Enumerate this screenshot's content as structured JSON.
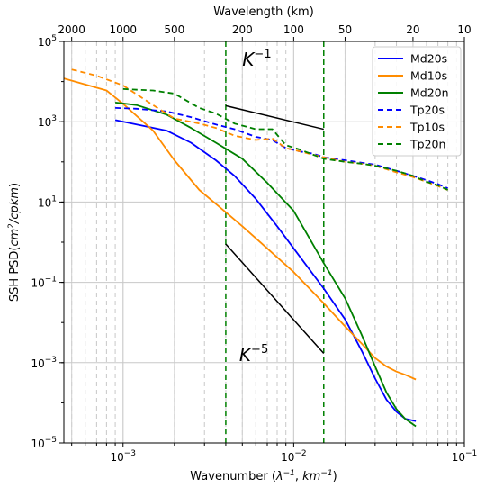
{
  "chart_data": {
    "type": "line",
    "xlabel_main": "Wavenumber (",
    "xlabel_math": "λ",
    "xlabel_sup": "−1",
    "xlabel_sep": ", ",
    "xlabel_unit": "km",
    "xlabel_end": ")",
    "ylabel_main": "SSH PSD(",
    "ylabel_unit": "cm",
    "ylabel_sup": "2",
    "ylabel_den": "/cpkm",
    "ylabel_end": ")",
    "top_xlabel": "Wavelength (km)",
    "x_scale": "log",
    "y_scale": "log",
    "xlim": [
      0.00045,
      0.1
    ],
    "ylim": [
      1e-05,
      100000
    ],
    "x_ticks": [
      {
        "value": 0.001,
        "base": "10",
        "exp": "−3"
      },
      {
        "value": 0.01,
        "base": "10",
        "exp": "−2"
      },
      {
        "value": 0.1,
        "base": "10",
        "exp": "−1"
      }
    ],
    "y_ticks": [
      {
        "value": 1e-05,
        "base": "10",
        "exp": "−5"
      },
      {
        "value": 0.001,
        "base": "10",
        "exp": "−3"
      },
      {
        "value": 0.1,
        "base": "10",
        "exp": "−1"
      },
      {
        "value": 10,
        "base": "10",
        "exp": "1"
      },
      {
        "value": 1000,
        "base": "10",
        "exp": "3"
      },
      {
        "value": 100000,
        "base": "10",
        "exp": "5"
      }
    ],
    "top_ticks": [
      {
        "km": 2000,
        "label": "2000"
      },
      {
        "km": 1000,
        "label": "1000"
      },
      {
        "km": 500,
        "label": "500"
      },
      {
        "km": 200,
        "label": "200"
      },
      {
        "km": 100,
        "label": "100"
      },
      {
        "km": 50,
        "label": "50"
      },
      {
        "km": 20,
        "label": "20"
      },
      {
        "km": 10,
        "label": "10"
      }
    ],
    "grid": true,
    "legend_position": "top-right",
    "series": [
      {
        "name": "Md20s",
        "color": "#0000ff",
        "dash": "solid",
        "points": [
          [
            0.0009,
            1100
          ],
          [
            0.0012,
            850
          ],
          [
            0.0018,
            600
          ],
          [
            0.0025,
            300
          ],
          [
            0.0035,
            110
          ],
          [
            0.0045,
            45
          ],
          [
            0.006,
            12
          ],
          [
            0.008,
            2.5
          ],
          [
            0.01,
            0.7
          ],
          [
            0.015,
            0.07
          ],
          [
            0.02,
            0.012
          ],
          [
            0.025,
            0.002
          ],
          [
            0.03,
            0.0004
          ],
          [
            0.035,
            0.00012
          ],
          [
            0.04,
            6e-05
          ],
          [
            0.045,
            4e-05
          ],
          [
            0.052,
            3.5e-05
          ]
        ]
      },
      {
        "name": "Md10s",
        "color": "#ff8c00",
        "dash": "solid",
        "points": [
          [
            0.00045,
            12000
          ],
          [
            0.0008,
            6000
          ],
          [
            0.001,
            2800
          ],
          [
            0.0015,
            600
          ],
          [
            0.002,
            110
          ],
          [
            0.0028,
            20
          ],
          [
            0.0035,
            9
          ],
          [
            0.005,
            2.5
          ],
          [
            0.007,
            0.7
          ],
          [
            0.01,
            0.18
          ],
          [
            0.015,
            0.03
          ],
          [
            0.02,
            0.008
          ],
          [
            0.025,
            0.003
          ],
          [
            0.03,
            0.0013
          ],
          [
            0.035,
            0.0008
          ],
          [
            0.04,
            0.0006
          ],
          [
            0.045,
            0.0005
          ],
          [
            0.052,
            0.00038
          ]
        ]
      },
      {
        "name": "Md20n",
        "color": "#008000",
        "dash": "solid",
        "points": [
          [
            0.0009,
            3000
          ],
          [
            0.0012,
            2600
          ],
          [
            0.0018,
            1500
          ],
          [
            0.0025,
            700
          ],
          [
            0.0035,
            300
          ],
          [
            0.005,
            120
          ],
          [
            0.007,
            30
          ],
          [
            0.01,
            6
          ],
          [
            0.015,
            0.3
          ],
          [
            0.02,
            0.04
          ],
          [
            0.025,
            0.005
          ],
          [
            0.03,
            0.0008
          ],
          [
            0.035,
            0.00018
          ],
          [
            0.04,
            7e-05
          ],
          [
            0.045,
            4e-05
          ],
          [
            0.052,
            2.6e-05
          ]
        ]
      },
      {
        "name": "Tp20s",
        "color": "#0000ff",
        "dash": "dashed",
        "points": [
          [
            0.0009,
            2200
          ],
          [
            0.0012,
            2100
          ],
          [
            0.0018,
            1800
          ],
          [
            0.0025,
            1300
          ],
          [
            0.0035,
            850
          ],
          [
            0.0045,
            650
          ],
          [
            0.006,
            420
          ],
          [
            0.0075,
            350
          ],
          [
            0.009,
            220
          ],
          [
            0.011,
            180
          ],
          [
            0.013,
            160
          ],
          [
            0.015,
            130
          ],
          [
            0.02,
            110
          ],
          [
            0.025,
            95
          ],
          [
            0.03,
            85
          ],
          [
            0.04,
            60
          ],
          [
            0.05,
            45
          ],
          [
            0.06,
            35
          ],
          [
            0.07,
            28
          ],
          [
            0.08,
            22
          ]
        ]
      },
      {
        "name": "Tp10s",
        "color": "#ff8c00",
        "dash": "dashed",
        "points": [
          [
            0.0005,
            20000
          ],
          [
            0.0007,
            14000
          ],
          [
            0.001,
            8000
          ],
          [
            0.0015,
            2600
          ],
          [
            0.002,
            1200
          ],
          [
            0.0028,
            900
          ],
          [
            0.0035,
            700
          ],
          [
            0.0045,
            450
          ],
          [
            0.006,
            350
          ],
          [
            0.0075,
            380
          ],
          [
            0.009,
            220
          ],
          [
            0.011,
            180
          ],
          [
            0.013,
            150
          ],
          [
            0.015,
            130
          ],
          [
            0.02,
            100
          ],
          [
            0.025,
            90
          ],
          [
            0.03,
            80
          ],
          [
            0.04,
            55
          ],
          [
            0.05,
            42
          ],
          [
            0.06,
            32
          ],
          [
            0.07,
            25
          ],
          [
            0.08,
            20
          ]
        ]
      },
      {
        "name": "Tp20n",
        "color": "#008000",
        "dash": "dashed",
        "points": [
          [
            0.001,
            6500
          ],
          [
            0.0015,
            6000
          ],
          [
            0.002,
            5000
          ],
          [
            0.0028,
            2200
          ],
          [
            0.0035,
            1600
          ],
          [
            0.0045,
            900
          ],
          [
            0.006,
            650
          ],
          [
            0.0075,
            650
          ],
          [
            0.009,
            260
          ],
          [
            0.011,
            200
          ],
          [
            0.013,
            150
          ],
          [
            0.015,
            120
          ],
          [
            0.02,
            100
          ],
          [
            0.025,
            90
          ],
          [
            0.03,
            80
          ],
          [
            0.04,
            60
          ],
          [
            0.05,
            45
          ],
          [
            0.06,
            32
          ],
          [
            0.07,
            26
          ],
          [
            0.08,
            20
          ]
        ]
      }
    ],
    "reference_lines": [
      {
        "label_base": "K",
        "label_exp": "−1",
        "x": [
          0.004,
          0.015
        ],
        "y": [
          2500,
          650
        ],
        "label_anchor": [
          0.005,
          25000
        ]
      },
      {
        "label_base": "K",
        "label_exp": "−5",
        "x": [
          0.004,
          0.015
        ],
        "y": [
          0.9,
          0.0017
        ],
        "label_anchor": [
          0.0048,
          0.0011
        ]
      }
    ],
    "vertical_markers": [
      {
        "x": 0.004,
        "color": "#008000",
        "dash": "dashed"
      },
      {
        "x": 0.015,
        "color": "#008000",
        "dash": "dashed"
      }
    ],
    "minor_grid_x": [
      0.0005,
      0.0006,
      0.0007,
      0.0008,
      0.0009,
      0.002,
      0.003,
      0.004,
      0.005,
      0.006,
      0.007,
      0.008,
      0.009,
      0.02,
      0.03,
      0.04,
      0.05,
      0.06,
      0.07,
      0.08,
      0.09
    ]
  }
}
